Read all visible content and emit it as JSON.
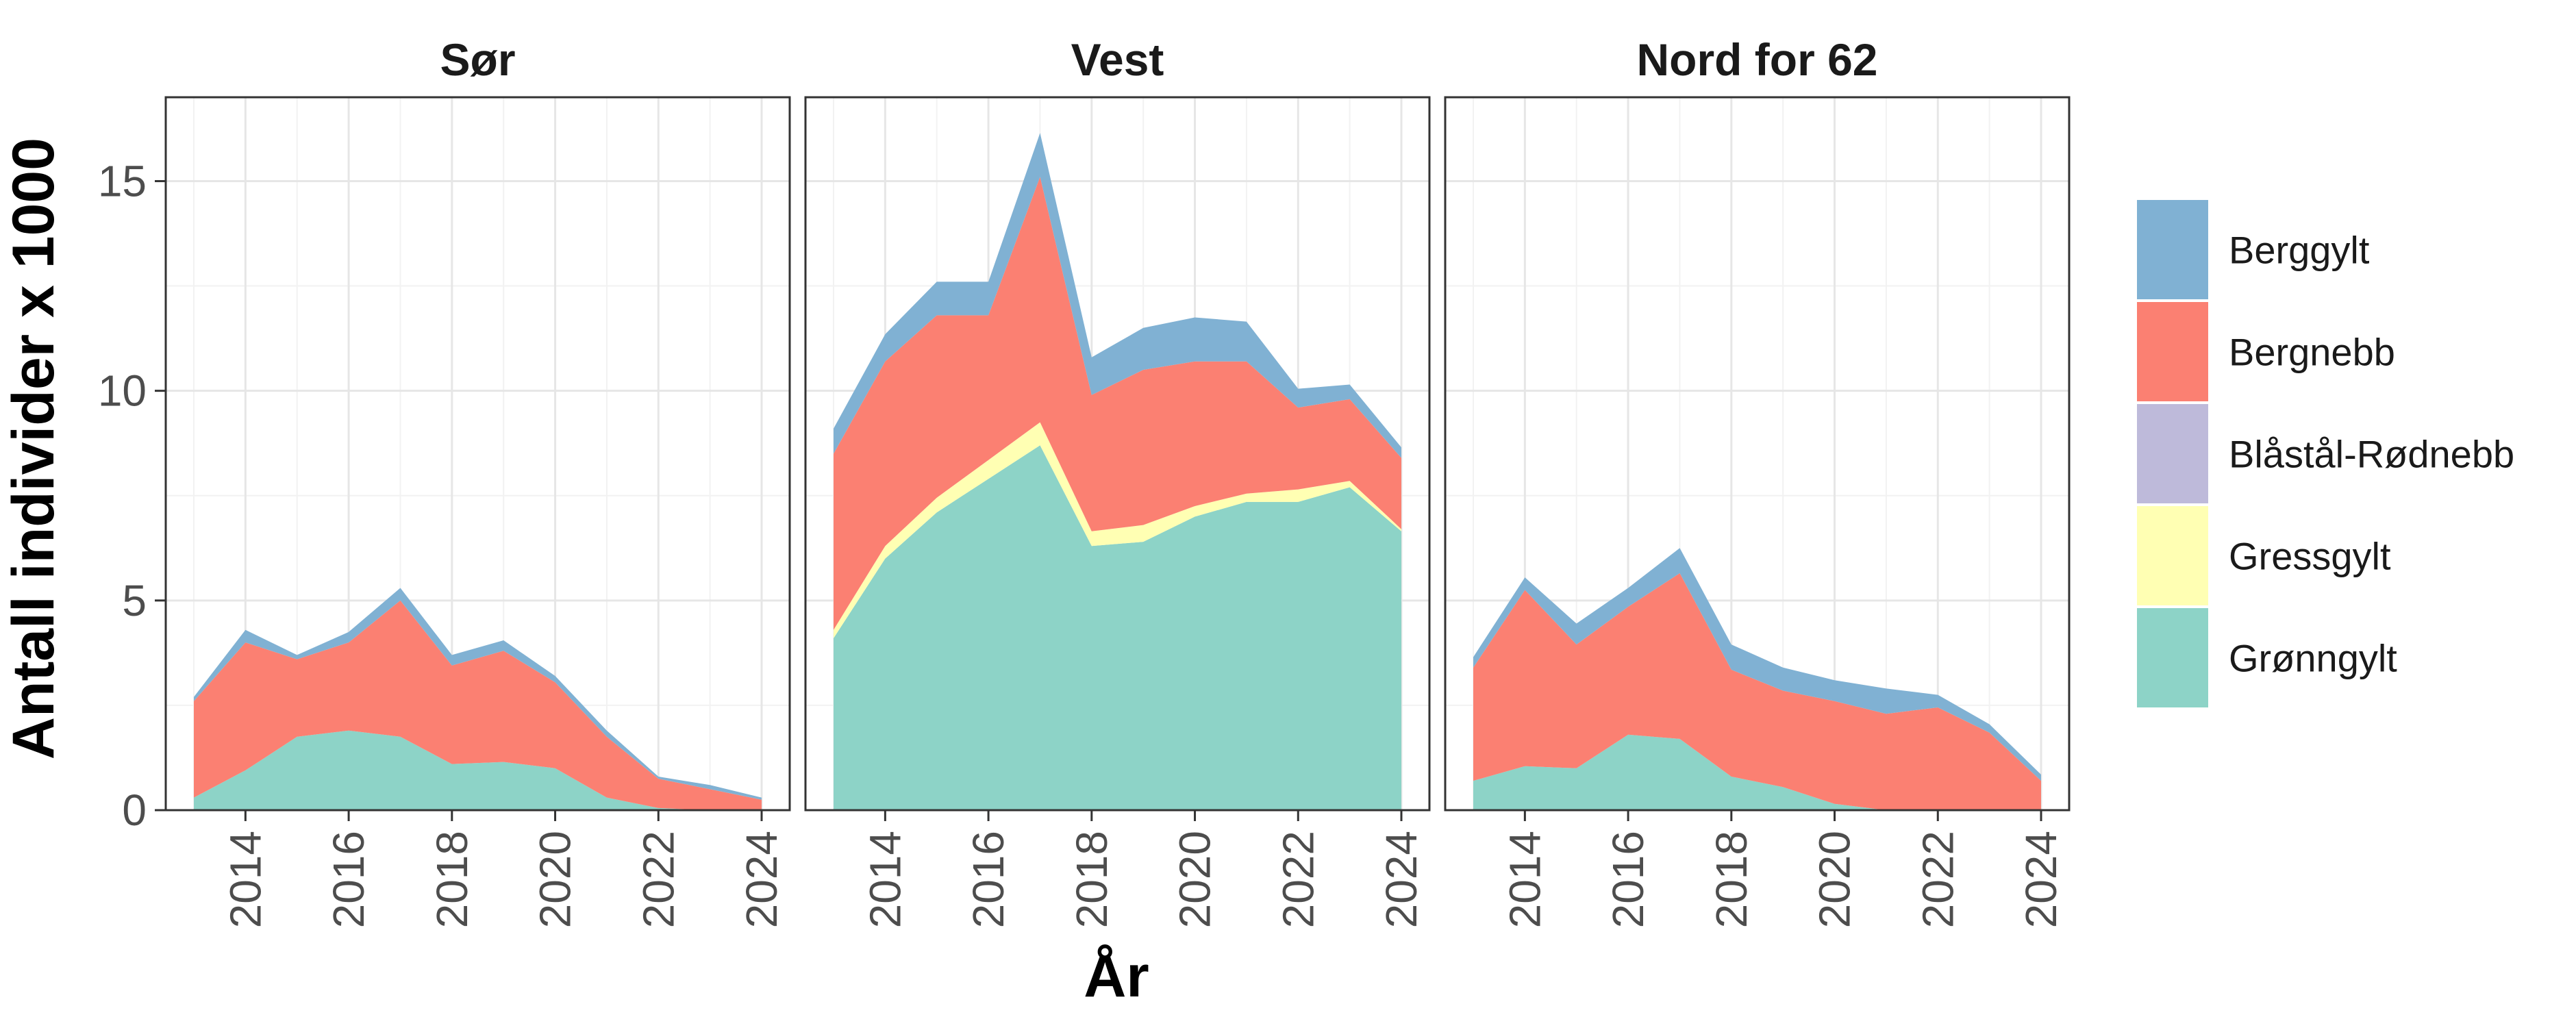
{
  "chart_data": {
    "type": "area",
    "stacked": true,
    "xlabel": "År",
    "ylabel": "Antall individer x 1000",
    "xlim": [
      2013,
      2024
    ],
    "ylim": [
      0,
      17
    ],
    "x_ticks": [
      2014,
      2016,
      2018,
      2020,
      2022,
      2024
    ],
    "y_ticks": [
      0,
      5,
      10,
      15
    ],
    "grid": true,
    "legend_position": "right",
    "legend": [
      {
        "name": "Berggylt",
        "color": "#80b1d3"
      },
      {
        "name": "Bergnebb",
        "color": "#fb8072"
      },
      {
        "name": "Blåstål-Rødnebb",
        "color": "#bebada"
      },
      {
        "name": "Gressgylt",
        "color": "#ffffb3"
      },
      {
        "name": "Grønngylt",
        "color": "#8dd3c7"
      }
    ],
    "stack_order": [
      "Grønngylt",
      "Gressgylt",
      "Blåstål-Rødnebb",
      "Bergnebb",
      "Berggylt"
    ],
    "years": [
      2013,
      2014,
      2015,
      2016,
      2017,
      2018,
      2019,
      2020,
      2021,
      2022,
      2023,
      2024
    ],
    "panels": [
      {
        "title": "Sør",
        "series": {
          "Grønngylt": [
            0.3,
            0.95,
            1.75,
            1.9,
            1.75,
            1.1,
            1.15,
            1.0,
            0.3,
            0.05,
            0.0,
            0.0
          ],
          "Gressgylt": [
            0,
            0,
            0,
            0,
            0,
            0,
            0,
            0,
            0,
            0,
            0,
            0
          ],
          "Blåstål-Rødnebb": [
            0,
            0,
            0,
            0,
            0,
            0,
            0,
            0,
            0,
            0,
            0,
            0
          ],
          "Bergnebb": [
            2.3,
            3.05,
            1.85,
            2.1,
            3.25,
            2.35,
            2.65,
            2.05,
            1.45,
            0.7,
            0.5,
            0.25
          ],
          "Berggylt": [
            0.1,
            0.3,
            0.1,
            0.25,
            0.3,
            0.25,
            0.25,
            0.15,
            0.15,
            0.05,
            0.1,
            0.05
          ]
        }
      },
      {
        "title": "Vest",
        "series": {
          "Grønngylt": [
            4.1,
            6.0,
            7.1,
            7.9,
            8.7,
            6.3,
            6.4,
            7.0,
            7.35,
            7.35,
            7.7,
            6.65
          ],
          "Gressgylt": [
            0.2,
            0.3,
            0.35,
            0.45,
            0.55,
            0.35,
            0.4,
            0.25,
            0.2,
            0.3,
            0.15,
            0.05
          ],
          "Blåstål-Rødnebb": [
            0,
            0,
            0,
            0,
            0,
            0,
            0,
            0,
            0,
            0,
            0,
            0
          ],
          "Bergnebb": [
            4.2,
            4.4,
            4.35,
            3.45,
            5.85,
            3.25,
            3.7,
            3.45,
            3.15,
            1.95,
            1.95,
            1.7
          ],
          "Berggylt": [
            0.6,
            0.65,
            0.8,
            0.8,
            1.05,
            0.9,
            1.0,
            1.05,
            0.95,
            0.45,
            0.35,
            0.25
          ]
        }
      },
      {
        "title": "Nord for 62",
        "series": {
          "Grønngylt": [
            0.7,
            1.05,
            1.0,
            1.8,
            1.7,
            0.8,
            0.55,
            0.15,
            0.0,
            0.0,
            0.0,
            0.0
          ],
          "Gressgylt": [
            0,
            0,
            0,
            0,
            0,
            0,
            0,
            0,
            0,
            0,
            0,
            0
          ],
          "Blåstål-Rødnebb": [
            0,
            0,
            0,
            0,
            0,
            0,
            0,
            0,
            0,
            0,
            0,
            0
          ],
          "Bergnebb": [
            2.7,
            4.2,
            2.95,
            3.05,
            3.95,
            2.55,
            2.3,
            2.45,
            2.3,
            2.45,
            1.85,
            0.7
          ],
          "Berggylt": [
            0.25,
            0.3,
            0.5,
            0.45,
            0.6,
            0.6,
            0.55,
            0.5,
            0.6,
            0.3,
            0.2,
            0.15
          ]
        }
      }
    ]
  }
}
